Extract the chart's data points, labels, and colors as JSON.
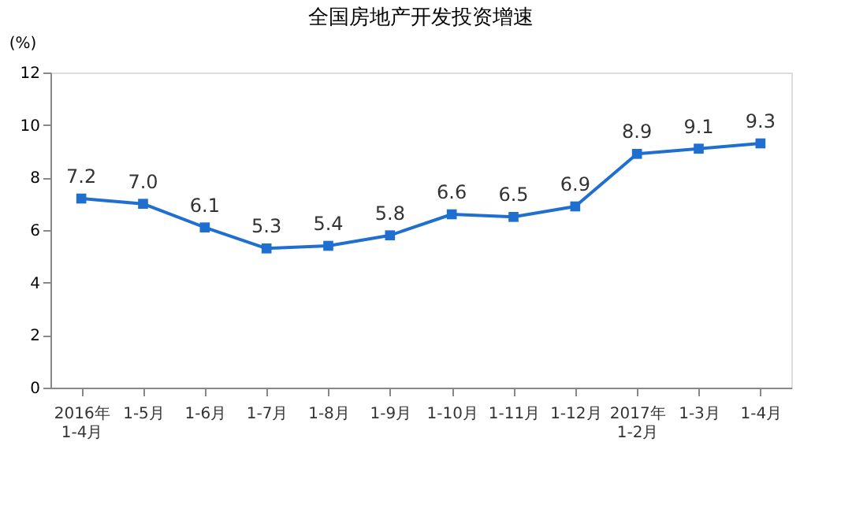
{
  "chart_data": {
    "type": "line",
    "title": "全国房地产开发投资增速",
    "ylabel": "(%)",
    "categories": [
      "2016年\n1-4月",
      "1-5月",
      "1-6月",
      "1-7月",
      "1-8月",
      "1-9月",
      "1-10月",
      "1-11月",
      "1-12月",
      "2017年\n1-2月",
      "1-3月",
      "1-4月"
    ],
    "series": [
      {
        "color": "#1f6fd0",
        "values": [
          7.2,
          7.0,
          6.1,
          5.3,
          5.4,
          5.8,
          6.6,
          6.5,
          6.9,
          8.9,
          9.1,
          9.3
        ],
        "value_labels": [
          "7.2",
          "7.0",
          "6.1",
          "5.3",
          "5.4",
          "5.8",
          "6.6",
          "6.5",
          "6.9",
          "8.9",
          "9.1",
          "9.3"
        ]
      }
    ],
    "ylim": [
      0,
      12
    ],
    "yticks": [
      0,
      2,
      4,
      6,
      8,
      10,
      12
    ],
    "grid": false,
    "marker": "square",
    "line_style": "solid",
    "data_labels": true,
    "legend": false
  }
}
